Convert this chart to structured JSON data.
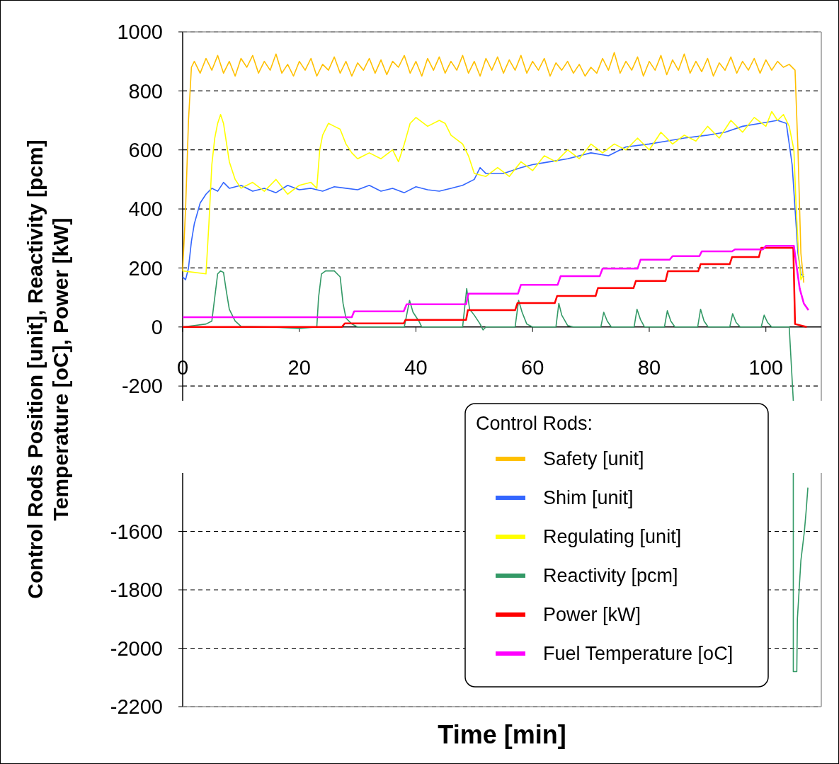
{
  "chart_data": [
    {
      "type": "line",
      "ylabel": "Control Rods Position [unit],  Reactivity [pcm]\nTemperature [oC], Power [kW]",
      "legend_title": "Control Rods:",
      "legend": "bottom right",
      "grid": "y",
      "line_style": "solid",
      "xlim": [
        0,
        109.5
      ],
      "xticks": [
        0,
        20,
        40,
        60,
        80,
        100
      ],
      "ylim": [
        -250,
        1000
      ],
      "yticks": [
        1000,
        800,
        600,
        400,
        200,
        0,
        -200
      ],
      "series": [
        {
          "name": "Safety [unit]",
          "color": "#ffc000",
          "x": [
            0,
            0.5,
            1,
            1.5,
            2,
            3,
            4,
            5,
            6,
            7,
            8,
            9,
            10,
            11,
            12,
            13,
            14,
            15,
            16,
            17,
            18,
            19,
            20,
            21,
            22,
            23,
            24,
            25,
            26,
            27,
            28,
            29,
            30,
            31,
            32,
            33,
            34,
            35,
            36,
            37,
            38,
            39,
            40,
            41,
            42,
            43,
            44,
            45,
            46,
            47,
            48,
            49,
            50,
            51,
            52,
            53,
            54,
            55,
            56,
            57,
            58,
            59,
            60,
            61,
            62,
            63,
            64,
            65,
            66,
            67,
            68,
            69,
            70,
            71,
            72,
            73,
            74,
            75,
            76,
            77,
            78,
            79,
            80,
            81,
            82,
            83,
            84,
            85,
            86,
            87,
            88,
            89,
            90,
            91,
            92,
            93,
            94,
            95,
            96,
            97,
            98,
            99,
            100,
            101,
            102,
            103,
            104,
            105,
            105.5,
            106,
            106.5
          ],
          "values": [
            190,
            400,
            700,
            880,
            900,
            860,
            910,
            870,
            920,
            860,
            900,
            850,
            910,
            880,
            920,
            860,
            900,
            870,
            925,
            860,
            890,
            850,
            900,
            870,
            910,
            850,
            890,
            870,
            915,
            860,
            900,
            850,
            895,
            870,
            910,
            860,
            905,
            855,
            900,
            880,
            920,
            860,
            900,
            850,
            910,
            870,
            915,
            860,
            900,
            870,
            920,
            860,
            900,
            850,
            910,
            870,
            915,
            860,
            905,
            870,
            920,
            860,
            900,
            870,
            910,
            850,
            895,
            870,
            900,
            860,
            890,
            850,
            880,
            860,
            910,
            870,
            930,
            860,
            900,
            870,
            915,
            850,
            900,
            870,
            920,
            855,
            905,
            870,
            925,
            860,
            900,
            865,
            910,
            850,
            895,
            870,
            915,
            860,
            900,
            870,
            910,
            860,
            905,
            870,
            900,
            880,
            890,
            870,
            600,
            250,
            150
          ]
        },
        {
          "name": "Shim [unit]",
          "color": "#3366ff",
          "x": [
            0,
            0.5,
            1,
            1.5,
            2,
            3,
            4,
            5,
            6,
            7,
            8,
            10,
            12,
            14,
            16,
            18,
            20,
            22,
            24,
            26,
            28,
            30,
            32,
            34,
            36,
            38,
            40,
            42,
            44,
            46,
            48,
            50,
            51,
            52,
            55,
            58,
            60,
            63,
            66,
            70,
            73,
            76,
            80,
            83,
            86,
            90,
            93,
            96,
            99,
            102,
            103.5,
            104.5,
            105,
            105.5,
            106,
            106.5
          ],
          "values": [
            170,
            160,
            200,
            290,
            350,
            420,
            450,
            470,
            460,
            490,
            470,
            480,
            460,
            470,
            455,
            480,
            465,
            470,
            460,
            475,
            470,
            465,
            480,
            460,
            470,
            455,
            475,
            465,
            460,
            470,
            480,
            500,
            540,
            520,
            520,
            540,
            550,
            560,
            570,
            590,
            580,
            610,
            620,
            630,
            640,
            650,
            660,
            680,
            690,
            700,
            690,
            550,
            400,
            250,
            180,
            170
          ]
        },
        {
          "name": "Regulating [unit]",
          "color": "#ffff00",
          "x": [
            0,
            4,
            4.5,
            5,
            5.5,
            6,
            6.5,
            7,
            8,
            9,
            10,
            12,
            14,
            16,
            18,
            20,
            22,
            23,
            23.5,
            24,
            25,
            26,
            27,
            28,
            29,
            30,
            32,
            34,
            36,
            37,
            38,
            39,
            40,
            42,
            44,
            45,
            46,
            48,
            49,
            50,
            52,
            54,
            56,
            58,
            60,
            62,
            64,
            66,
            68,
            70,
            72,
            74,
            76,
            78,
            80,
            82,
            84,
            86,
            88,
            90,
            92,
            94,
            96,
            98,
            100,
            101,
            102,
            103,
            104,
            104.8,
            105.2,
            105.6,
            106,
            106.5
          ],
          "values": [
            190,
            180,
            350,
            550,
            640,
            690,
            720,
            690,
            560,
            500,
            470,
            490,
            460,
            500,
            450,
            480,
            490,
            470,
            600,
            650,
            690,
            680,
            670,
            620,
            590,
            570,
            590,
            570,
            600,
            560,
            620,
            690,
            710,
            680,
            700,
            690,
            650,
            620,
            580,
            520,
            510,
            540,
            510,
            560,
            530,
            580,
            560,
            600,
            570,
            620,
            590,
            620,
            600,
            640,
            600,
            660,
            620,
            650,
            630,
            680,
            640,
            700,
            660,
            710,
            680,
            730,
            700,
            720,
            680,
            600,
            400,
            250,
            160,
            180
          ]
        },
        {
          "name": "Reactivity [pcm]",
          "color": "#339966",
          "x": [
            0,
            2,
            4,
            5,
            5.5,
            6,
            6.5,
            7,
            7.5,
            8,
            9,
            10,
            15,
            20,
            23,
            23.3,
            23.8,
            24.5,
            26,
            27,
            27.5,
            28,
            29,
            30,
            38,
            38.9,
            39.5,
            40.5,
            41,
            48,
            48.7,
            49.2,
            50,
            51,
            51.5,
            52,
            57,
            57.6,
            58.2,
            59,
            60,
            64,
            64.5,
            65,
            66,
            67,
            71.7,
            72.2,
            72.8,
            73.5,
            77.4,
            77.9,
            78.5,
            79.2,
            82.6,
            83.1,
            83.7,
            84.4,
            88.3,
            88.8,
            89.4,
            90.1,
            93.8,
            94.3,
            94.9,
            95.6,
            99.2,
            99.7,
            100.3,
            101,
            104,
            104.7
          ],
          "values": [
            0,
            5,
            10,
            20,
            100,
            180,
            190,
            185,
            120,
            60,
            20,
            2,
            0,
            -5,
            0,
            100,
            180,
            190,
            190,
            170,
            80,
            30,
            10,
            0,
            0,
            90,
            50,
            20,
            0,
            0,
            130,
            60,
            40,
            10,
            -10,
            0,
            0,
            90,
            50,
            10,
            0,
            0,
            80,
            40,
            5,
            0,
            0,
            50,
            20,
            0,
            0,
            60,
            25,
            0,
            0,
            55,
            20,
            0,
            0,
            60,
            20,
            0,
            0,
            45,
            15,
            0,
            0,
            40,
            15,
            0,
            0,
            -250
          ]
        },
        {
          "name": "Power [kW]",
          "color": "#ff0000",
          "x": [
            0,
            27.3,
            27.8,
            37.9,
            38.2,
            48.6,
            48.9,
            57,
            57.4,
            63.8,
            64.2,
            70.8,
            71.2,
            77.3,
            77.7,
            82.8,
            83.2,
            88.4,
            88.8,
            93.8,
            94.2,
            98.8,
            99.2,
            104.7,
            105,
            107
          ],
          "values": [
            0,
            0,
            12,
            12,
            24,
            24,
            57,
            57,
            81,
            81,
            105,
            105,
            132,
            132,
            156,
            156,
            189,
            189,
            213,
            213,
            237,
            237,
            268,
            268,
            10,
            0
          ]
        },
        {
          "name": "Fuel Temperature [oC]",
          "color": "#ff00ff",
          "x": [
            0,
            29,
            29.4,
            37.9,
            38.4,
            48.6,
            49,
            57.5,
            58,
            64.3,
            64.8,
            71.5,
            72,
            78,
            78.5,
            83.5,
            84,
            88.6,
            89,
            94.2,
            94.7,
            99.5,
            100,
            104.8,
            105.3,
            105.8,
            106.5,
            107.3
          ],
          "values": [
            33,
            33,
            53,
            53,
            77,
            77,
            113,
            113,
            143,
            143,
            172,
            172,
            198,
            198,
            228,
            228,
            240,
            240,
            256,
            256,
            263,
            263,
            275,
            275,
            200,
            130,
            80,
            57
          ]
        }
      ]
    },
    {
      "type": "line",
      "xlabel": "Time [min]",
      "tick_labels": "y",
      "grid": "y",
      "xlim": [
        0,
        109.5
      ],
      "ylim": [
        -2200,
        -1400
      ],
      "yticks": [
        -1600,
        -1800,
        -2000,
        -2200
      ],
      "series": [
        {
          "color": "#339966",
          "x": [
            104.7,
            104.7,
            105.3,
            105.4,
            105.7,
            106,
            106.3,
            106.6,
            106.9,
            107.2
          ],
          "values": [
            -1400,
            -2080,
            -2080,
            -1900,
            -1800,
            -1700,
            -1650,
            -1600,
            -1530,
            -1450
          ]
        }
      ]
    }
  ]
}
